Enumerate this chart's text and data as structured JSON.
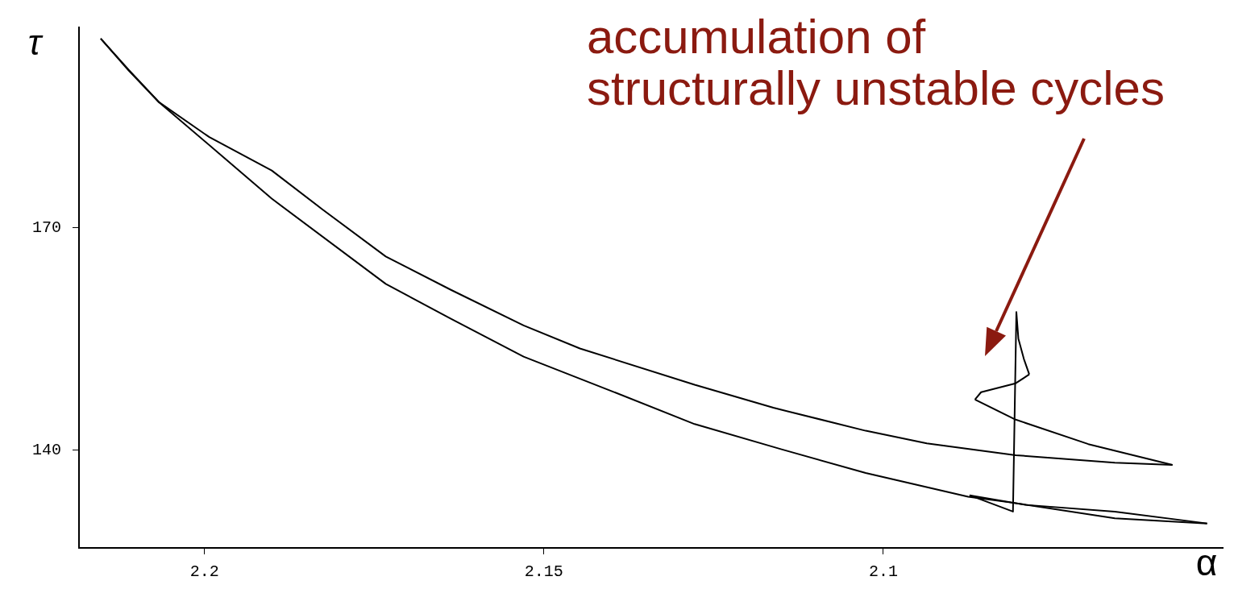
{
  "chart_data": {
    "type": "line",
    "xlabel": "α",
    "ylabel": "τ",
    "xlim": [
      2.2185,
      2.05
    ],
    "ylim": [
      126.8,
      197
    ],
    "xticks": [
      2.2,
      2.15,
      2.1
    ],
    "yticks": [
      170,
      140
    ],
    "grid": false,
    "legend": false,
    "marker": "none",
    "line_style": "solid",
    "series": [
      {
        "color": "#000000",
        "x": [
          2.2153,
          2.2112,
          2.2067,
          2.1993,
          2.1901,
          2.1827,
          2.1733,
          2.1637,
          2.153,
          2.1447,
          2.1278,
          2.1162,
          2.1026,
          2.0936,
          2.0805,
          2.0659,
          2.0574
        ],
        "values": [
          195.5,
          191.3,
          186.9,
          182.2,
          177.7,
          172.5,
          166.1,
          161.6,
          156.8,
          153.7,
          148.8,
          145.7,
          142.6,
          140.9,
          139.3,
          138.3,
          138.0
        ]
      },
      {
        "color": "#000000",
        "x": [
          2.0574,
          2.0698,
          2.0805,
          2.0865
        ],
        "values": [
          138.0,
          140.8,
          144.1,
          146.8
        ]
      },
      {
        "color": "#000000",
        "x": [
          2.0865,
          2.0856,
          2.0805,
          2.0785
        ],
        "values": [
          146.8,
          147.8,
          149.0,
          150.2
        ]
      },
      {
        "color": "#000000",
        "x": [
          2.0785,
          2.0793,
          2.0801,
          2.0804,
          2.0809,
          2.0873
        ],
        "values": [
          150.2,
          152.3,
          155.0,
          158.6,
          131.7,
          133.9
        ]
      },
      {
        "color": "#000000",
        "x": [
          2.0873,
          2.079,
          2.0659,
          2.0523
        ],
        "values": [
          133.9,
          132.6,
          131.7,
          130.1
        ]
      },
      {
        "color": "#000000",
        "x": [
          2.0523,
          2.0659,
          2.081,
          2.0875,
          2.1026,
          2.115,
          2.1278,
          2.1399,
          2.153,
          2.1637,
          2.1733,
          2.1901,
          2.1971,
          2.2067,
          2.2112,
          2.2153
        ],
        "values": [
          130.1,
          130.8,
          132.9,
          133.7,
          136.9,
          140.1,
          143.5,
          147.9,
          152.6,
          157.7,
          162.4,
          173.9,
          179.4,
          186.9,
          191.2,
          195.5
        ]
      }
    ],
    "annotations": [
      "accumulation of\nstructurally unstable cycles"
    ]
  }
}
